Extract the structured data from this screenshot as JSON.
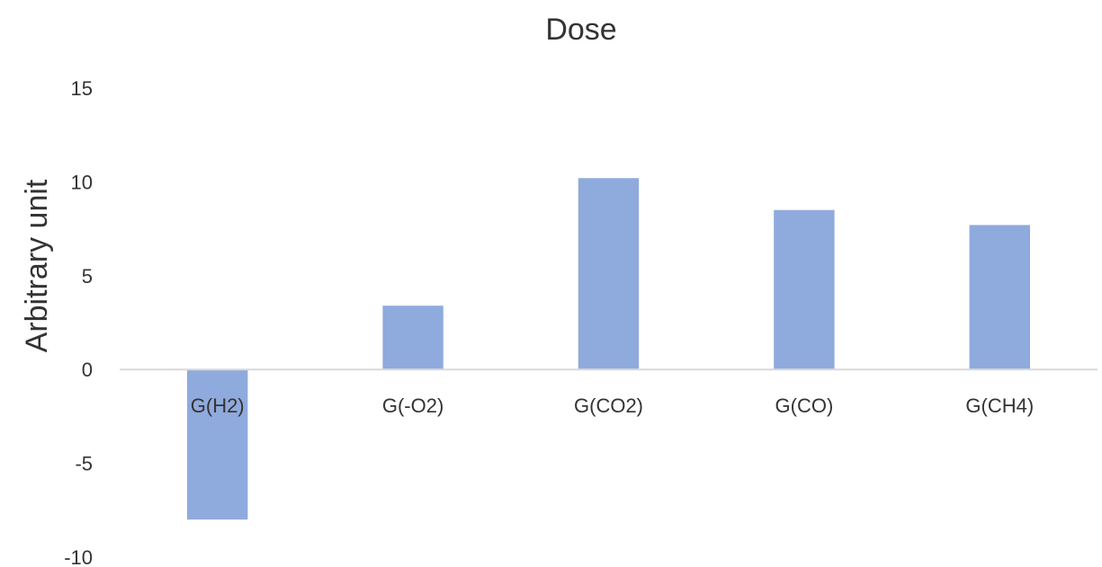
{
  "chart_data": {
    "type": "bar",
    "title": "Dose",
    "xlabel": "",
    "ylabel": "Arbitrary unit",
    "categories": [
      "G(H2)",
      "G(-O2)",
      "G(CO2)",
      "G(CO)",
      "G(CH4)"
    ],
    "values": [
      -8.0,
      3.4,
      10.2,
      8.5,
      7.7
    ],
    "ylim": [
      -10,
      15
    ],
    "yticks": [
      "15",
      "10",
      "5",
      "0",
      "-5",
      "-10"
    ],
    "grid": false,
    "legend": "none",
    "bar_color": "#8faadc",
    "axis_color": "#d9d9d9"
  }
}
